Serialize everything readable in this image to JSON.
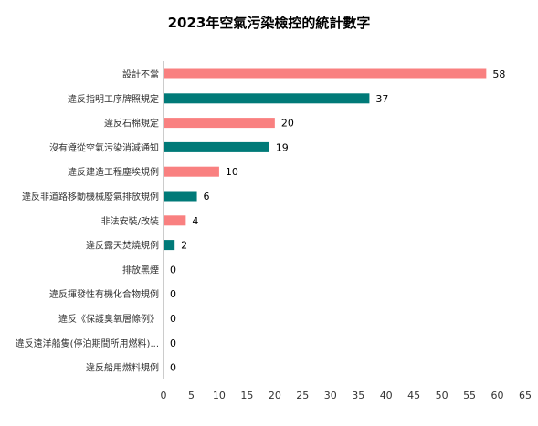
{
  "chart_data": {
    "type": "bar",
    "orientation": "horizontal",
    "title": "2023年空氣污染檢控的統計數字",
    "xlabel": "",
    "ylabel": "",
    "xlim": [
      0,
      65
    ],
    "xticks": [
      0,
      5,
      10,
      15,
      20,
      25,
      30,
      35,
      40,
      45,
      50,
      55,
      60,
      65
    ],
    "grid": false,
    "legend": "none",
    "colors": [
      "#f98080",
      "#007a78"
    ],
    "categories": [
      "設計不當",
      "違反指明工序牌照規定",
      "違反石棉規定",
      "沒有遵從空氣污染消減通知",
      "違反建造工程塵埃規例",
      "違反非道路移動機械廢氣排放規例",
      "非法安裝/改裝",
      "違反露天焚燒規例",
      "排放黑煙",
      "違反揮發性有機化合物規例",
      "違反《保護臭氧層條例》",
      "違反遠洋船隻(停泊期間所用燃料)...",
      "違反船用燃料規例"
    ],
    "values": [
      58,
      37,
      20,
      19,
      10,
      6,
      4,
      2,
      0,
      0,
      0,
      0,
      0
    ]
  }
}
